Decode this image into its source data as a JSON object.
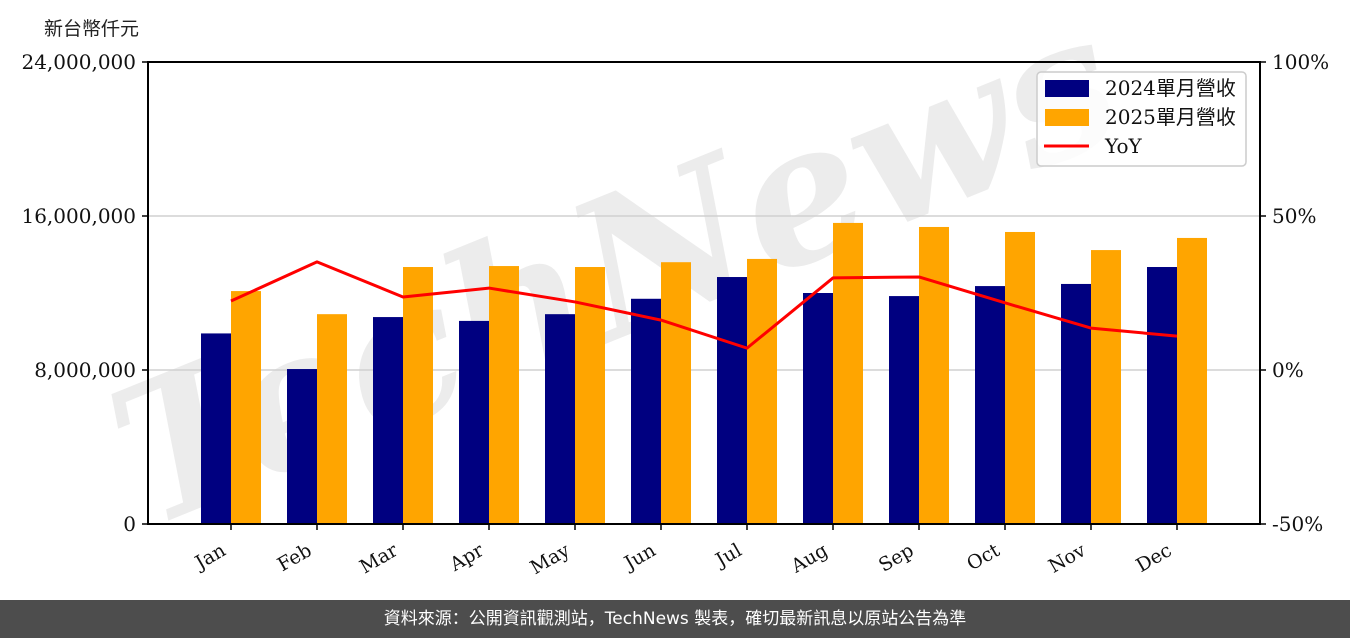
{
  "unit_label": "新台幣仟元",
  "footer": "資料來源：公開資訊觀測站，TechNews 製表，確切最新訊息以原站公告為準",
  "watermark": "TechNews",
  "colors": {
    "series_2024": "#000080",
    "series_2025": "#ffa500",
    "yoy": "#ff0000",
    "grid": "#d0d0d0",
    "footer_bg": "#4d4d4d"
  },
  "legend": {
    "items": [
      {
        "label": "2024單月營收",
        "type": "bar",
        "color": "#000080"
      },
      {
        "label": "2025單月營收",
        "type": "bar",
        "color": "#ffa500"
      },
      {
        "label": "YoY",
        "type": "line",
        "color": "#ff0000"
      }
    ]
  },
  "chart_data": {
    "type": "bar",
    "title": "",
    "xlabel": "",
    "ylabel": "新台幣仟元",
    "categories": [
      "Jan",
      "Feb",
      "Mar",
      "Apr",
      "May",
      "Jun",
      "Jul",
      "Aug",
      "Sep",
      "Oct",
      "Nov",
      "Dec"
    ],
    "series": [
      {
        "name": "2024單月營收",
        "type": "bar",
        "axis": "left",
        "values": [
          9900000,
          8050000,
          10750000,
          10550000,
          10900000,
          11700000,
          12830000,
          12000000,
          11840000,
          12360000,
          12470000,
          13350000
        ]
      },
      {
        "name": "2025單月營收",
        "type": "bar",
        "axis": "left",
        "values": [
          12100000,
          10900000,
          13350000,
          13400000,
          13350000,
          13600000,
          13770000,
          15640000,
          15430000,
          15170000,
          14230000,
          14860000
        ]
      },
      {
        "name": "YoY",
        "type": "line",
        "axis": "right",
        "unit": "%",
        "values": [
          22.4,
          35.1,
          23.7,
          26.6,
          22.1,
          16.2,
          7.1,
          29.9,
          30.2,
          21.8,
          13.6,
          11.0
        ]
      }
    ],
    "ylim": [
      0,
      24000000
    ],
    "y_ticks": [
      "0",
      "8,000,000",
      "16,000,000",
      "24,000,000"
    ],
    "y_tick_values": [
      0,
      8000000,
      16000000,
      24000000
    ],
    "y2lim": [
      -50,
      100
    ],
    "y2_ticks": [
      "-50%",
      "0%",
      "50%",
      "100%"
    ],
    "y2_tick_values": [
      -50,
      0,
      50,
      100
    ],
    "grid": true,
    "legend_position": "upper right"
  }
}
